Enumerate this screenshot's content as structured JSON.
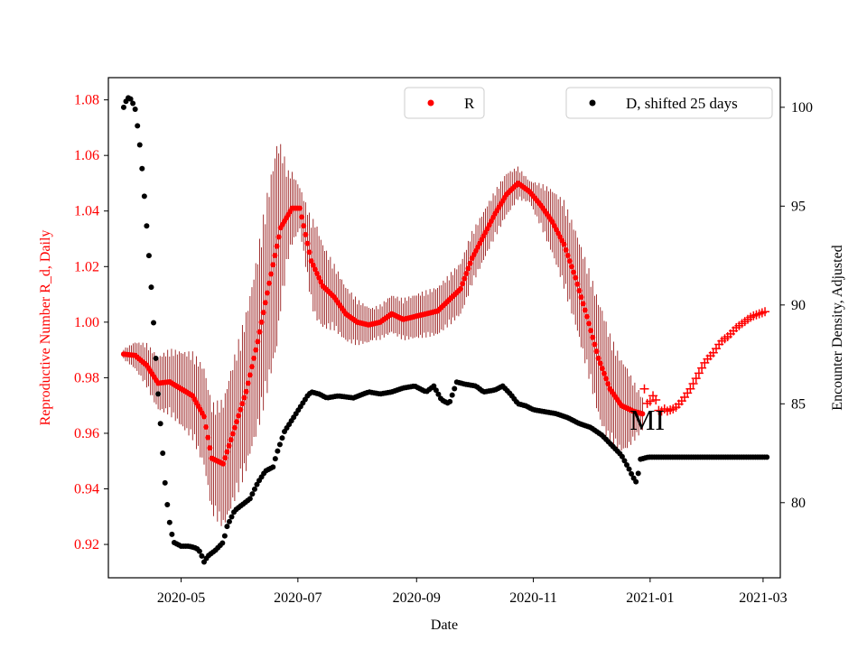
{
  "chart_data": {
    "type": "scatter",
    "xlabel": "Date",
    "ylabel_left": "Reproductive Number R_d, Daily",
    "ylabel_right": "Encounter Density, Adjusted",
    "x_ticks": [
      "2020-05",
      "2020-07",
      "2020-09",
      "2020-11",
      "2021-01",
      "2021-03"
    ],
    "x_tick_days": [
      30,
      91,
      153,
      214,
      275,
      334
    ],
    "xlim_days": [
      -8,
      343
    ],
    "y_left_ticks": [
      "0.92",
      "0.94",
      "0.96",
      "0.98",
      "1.00",
      "1.02",
      "1.04",
      "1.06",
      "1.08"
    ],
    "y_left_range": [
      0.908,
      1.088
    ],
    "y_right_ticks": [
      "80",
      "85",
      "90",
      "95",
      "100"
    ],
    "y_right_range": [
      76.2,
      101.5
    ],
    "annotation": {
      "text": "MI",
      "day": 276,
      "value": 0.9645
    },
    "legend_left": {
      "label": "R",
      "position": "top-center"
    },
    "legend_right": {
      "label": "D, shifted 25 days",
      "position": "top-right"
    },
    "colors": {
      "R": "#ff0000",
      "errorbar": "#8b0000",
      "D": "#000000",
      "left_axis_text": "#ff0000"
    },
    "series": [
      {
        "name": "R",
        "axis": "left",
        "marker": "dot",
        "note": "Daily R_d, days since 2020-04-01 (day, value); dot markers through day 271, error band width given below",
        "points": [
          [
            0,
            0.9885
          ],
          [
            6,
            0.988
          ],
          [
            12,
            0.9845
          ],
          [
            18,
            0.978
          ],
          [
            24,
            0.9785
          ],
          [
            30,
            0.976
          ],
          [
            36,
            0.9735
          ],
          [
            42,
            0.966
          ],
          [
            46,
            0.951
          ],
          [
            52,
            0.949
          ],
          [
            58,
            0.962
          ],
          [
            64,
            0.975
          ],
          [
            70,
            0.993
          ],
          [
            76,
            1.014
          ],
          [
            82,
            1.034
          ],
          [
            88,
            1.041
          ],
          [
            92,
            1.041
          ],
          [
            98,
            1.022
          ],
          [
            104,
            1.013
          ],
          [
            110,
            1.009
          ],
          [
            116,
            1.003
          ],
          [
            122,
            1.0
          ],
          [
            128,
            0.999
          ],
          [
            134,
            1.0
          ],
          [
            140,
            1.003
          ],
          [
            146,
            1.001
          ],
          [
            152,
            1.002
          ],
          [
            158,
            1.003
          ],
          [
            164,
            1.004
          ],
          [
            170,
            1.008
          ],
          [
            176,
            1.012
          ],
          [
            182,
            1.023
          ],
          [
            188,
            1.031
          ],
          [
            194,
            1.039
          ],
          [
            200,
            1.046
          ],
          [
            206,
            1.05
          ],
          [
            212,
            1.047
          ],
          [
            218,
            1.042
          ],
          [
            224,
            1.036
          ],
          [
            230,
            1.028
          ],
          [
            236,
            1.016
          ],
          [
            242,
            1.002
          ],
          [
            248,
            0.987
          ],
          [
            254,
            0.976
          ],
          [
            260,
            0.97
          ],
          [
            266,
            0.968
          ],
          [
            271,
            0.967
          ]
        ],
        "band": [
          [
            0,
            0.002
          ],
          [
            12,
            0.008
          ],
          [
            24,
            0.012
          ],
          [
            36,
            0.016
          ],
          [
            46,
            0.02
          ],
          [
            56,
            0.026
          ],
          [
            66,
            0.03
          ],
          [
            74,
            0.036
          ],
          [
            80,
            0.038
          ],
          [
            86,
            0.016
          ],
          [
            92,
            0.008
          ],
          [
            100,
            0.018
          ],
          [
            110,
            0.012
          ],
          [
            130,
            0.006
          ],
          [
            150,
            0.008
          ],
          [
            180,
            0.01
          ],
          [
            200,
            0.008
          ],
          [
            212,
            0.004
          ],
          [
            230,
            0.016
          ],
          [
            250,
            0.022
          ],
          [
            262,
            0.016
          ],
          [
            271,
            0.006
          ]
        ]
      },
      {
        "name": "R (plus markers)",
        "axis": "left",
        "marker": "plus",
        "points": [
          [
            272,
            0.976
          ],
          [
            274,
            0.969
          ],
          [
            276,
            0.974
          ],
          [
            278,
            0.972
          ],
          [
            280,
            0.967
          ],
          [
            282,
            0.969
          ],
          [
            284,
            0.968
          ],
          [
            288,
            0.969
          ],
          [
            292,
            0.972
          ],
          [
            296,
            0.976
          ],
          [
            300,
            0.981
          ],
          [
            304,
            0.986
          ],
          [
            308,
            0.989
          ],
          [
            312,
            0.993
          ],
          [
            316,
            0.995
          ],
          [
            320,
            0.998
          ],
          [
            324,
            1.0
          ],
          [
            328,
            1.002
          ],
          [
            332,
            1.003
          ],
          [
            336,
            1.004
          ]
        ]
      },
      {
        "name": "D, shifted 25 days",
        "axis": "right",
        "marker": "dot",
        "points": [
          [
            0,
            100.0
          ],
          [
            2,
            100.5
          ],
          [
            4,
            100.4
          ],
          [
            6,
            99.9
          ],
          [
            8,
            98.5
          ],
          [
            10,
            96.5
          ],
          [
            12,
            94.0
          ],
          [
            14,
            91.5
          ],
          [
            16,
            88.5
          ],
          [
            18,
            85.5
          ],
          [
            20,
            83.0
          ],
          [
            22,
            80.5
          ],
          [
            24,
            79.0
          ],
          [
            26,
            78.0
          ],
          [
            30,
            77.8
          ],
          [
            34,
            77.8
          ],
          [
            38,
            77.7
          ],
          [
            40,
            77.5
          ],
          [
            42,
            77.0
          ],
          [
            44,
            77.3
          ],
          [
            48,
            77.6
          ],
          [
            52,
            78.0
          ],
          [
            54,
            78.8
          ],
          [
            58,
            79.6
          ],
          [
            62,
            79.9
          ],
          [
            66,
            80.2
          ],
          [
            70,
            81.0
          ],
          [
            74,
            81.6
          ],
          [
            78,
            81.8
          ],
          [
            80,
            82.5
          ],
          [
            84,
            83.6
          ],
          [
            88,
            84.2
          ],
          [
            92,
            84.8
          ],
          [
            96,
            85.4
          ],
          [
            98,
            85.6
          ],
          [
            102,
            85.5
          ],
          [
            106,
            85.3
          ],
          [
            112,
            85.4
          ],
          [
            120,
            85.3
          ],
          [
            128,
            85.6
          ],
          [
            134,
            85.5
          ],
          [
            140,
            85.6
          ],
          [
            146,
            85.8
          ],
          [
            152,
            85.9
          ],
          [
            158,
            85.6
          ],
          [
            162,
            85.9
          ],
          [
            166,
            85.2
          ],
          [
            170,
            85.0
          ],
          [
            174,
            86.1
          ],
          [
            178,
            86.0
          ],
          [
            184,
            85.9
          ],
          [
            188,
            85.6
          ],
          [
            194,
            85.7
          ],
          [
            198,
            85.9
          ],
          [
            202,
            85.5
          ],
          [
            206,
            85.0
          ],
          [
            210,
            84.9
          ],
          [
            214,
            84.7
          ],
          [
            220,
            84.6
          ],
          [
            226,
            84.5
          ],
          [
            232,
            84.3
          ],
          [
            238,
            84.0
          ],
          [
            244,
            83.8
          ],
          [
            250,
            83.4
          ],
          [
            256,
            82.8
          ],
          [
            260,
            82.4
          ],
          [
            264,
            81.7
          ],
          [
            266,
            81.3
          ],
          [
            268,
            81.0
          ],
          [
            270,
            82.2
          ],
          [
            274,
            82.3
          ],
          [
            280,
            82.3
          ],
          [
            290,
            82.3
          ],
          [
            300,
            82.3
          ],
          [
            310,
            82.3
          ],
          [
            320,
            82.3
          ],
          [
            330,
            82.3
          ],
          [
            336,
            82.3
          ]
        ]
      }
    ]
  }
}
